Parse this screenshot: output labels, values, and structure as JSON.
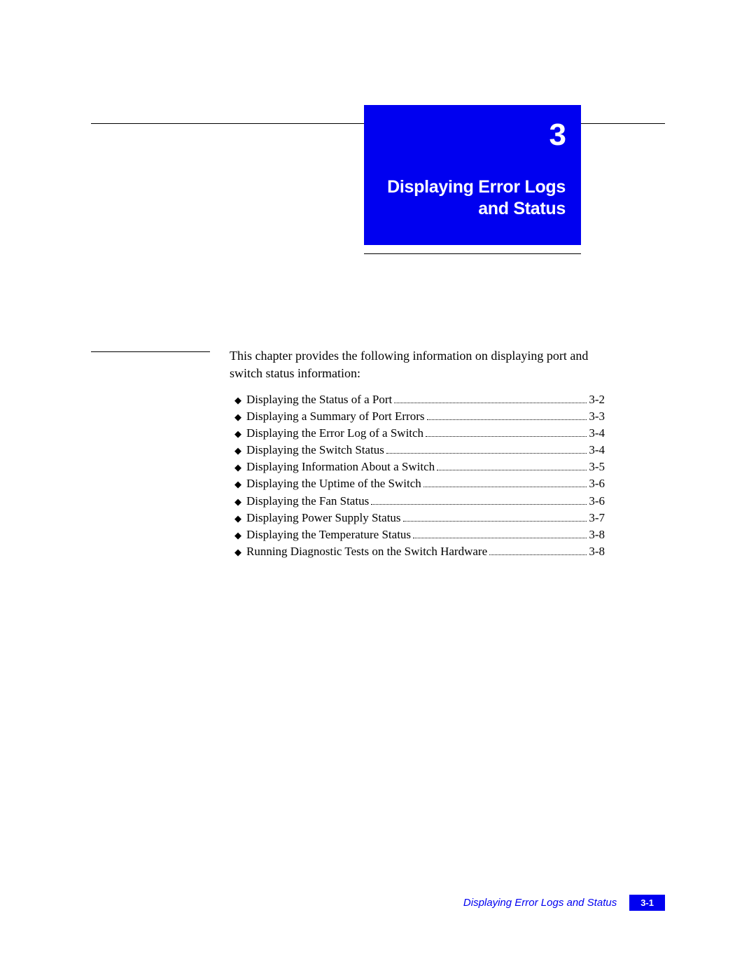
{
  "colors": {
    "brand_blue": "#0000f0",
    "text": "#000000",
    "background": "#ffffff",
    "white": "#ffffff"
  },
  "typography": {
    "body_font": "Book Antiqua / Palatino serif",
    "body_size_pt": 11,
    "heading_font": "Arial / Helvetica sans-serif",
    "chapter_number_size_pt": 34,
    "chapter_title_size_pt": 19
  },
  "chapter": {
    "number": "3",
    "title_line1": "Displaying Error Logs",
    "title_line2": "and Status"
  },
  "intro": "This chapter provides the following information on displaying port and switch status information:",
  "toc": [
    {
      "title": "Displaying the Status of a Port",
      "page": "3-2"
    },
    {
      "title": "Displaying a Summary of Port Errors",
      "page": "3-3"
    },
    {
      "title": "Displaying the Error Log of a Switch",
      "page": "3-4"
    },
    {
      "title": "Displaying the Switch Status",
      "page": "3-4"
    },
    {
      "title": "Displaying Information About a Switch",
      "page": "3-5"
    },
    {
      "title": "Displaying the Uptime of the Switch",
      "page": "3-6"
    },
    {
      "title": "Displaying the Fan Status",
      "page": "3-6"
    },
    {
      "title": "Displaying Power Supply Status",
      "page": "3-7"
    },
    {
      "title": "Displaying the Temperature Status",
      "page": "3-8"
    },
    {
      "title": "Running Diagnostic Tests on the Switch Hardware",
      "page": "3-8"
    }
  ],
  "footer": {
    "title": "Displaying Error Logs and Status",
    "page": "3-1"
  },
  "bullet_glyph": "◆"
}
